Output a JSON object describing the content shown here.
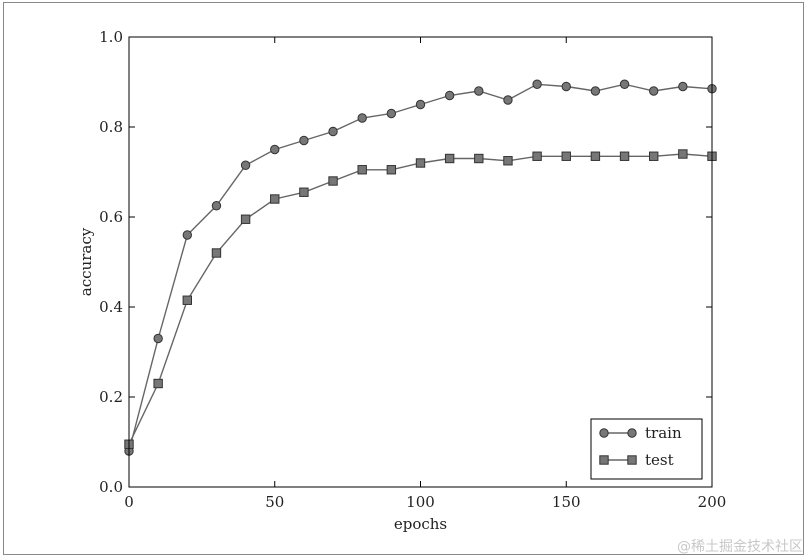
{
  "chart_data": {
    "type": "line",
    "title": "",
    "xlabel": "epochs",
    "ylabel": "accuracy",
    "xlim": [
      0,
      200
    ],
    "ylim": [
      0.0,
      1.0
    ],
    "xticks": [
      "0",
      "50",
      "100",
      "150",
      "200"
    ],
    "yticks": [
      "0.0",
      "0.2",
      "0.4",
      "0.6",
      "0.8",
      "1.0"
    ],
    "grid": false,
    "legend_position": "bottom-right",
    "series": [
      {
        "name": "train",
        "marker": "circle",
        "x": [
          0,
          10,
          20,
          30,
          40,
          50,
          60,
          70,
          80,
          90,
          100,
          110,
          120,
          130,
          140,
          150,
          160,
          170,
          180,
          190,
          200
        ],
        "values": [
          0.08,
          0.33,
          0.56,
          0.625,
          0.715,
          0.75,
          0.77,
          0.79,
          0.82,
          0.83,
          0.85,
          0.87,
          0.88,
          0.86,
          0.895,
          0.89,
          0.88,
          0.895,
          0.88,
          0.89,
          0.885
        ]
      },
      {
        "name": "test",
        "marker": "square",
        "x": [
          0,
          10,
          20,
          30,
          40,
          50,
          60,
          70,
          80,
          90,
          100,
          110,
          120,
          130,
          140,
          150,
          160,
          170,
          180,
          190,
          200
        ],
        "values": [
          0.095,
          0.23,
          0.415,
          0.52,
          0.595,
          0.64,
          0.655,
          0.68,
          0.705,
          0.705,
          0.72,
          0.73,
          0.73,
          0.725,
          0.735,
          0.735,
          0.735,
          0.735,
          0.735,
          0.74,
          0.735
        ]
      }
    ],
    "colors": {
      "line": "#666666",
      "marker_fill": "#777777",
      "marker_edge": "#333333",
      "axes": "#000000"
    }
  },
  "watermark": "@稀土掘金技术社区"
}
